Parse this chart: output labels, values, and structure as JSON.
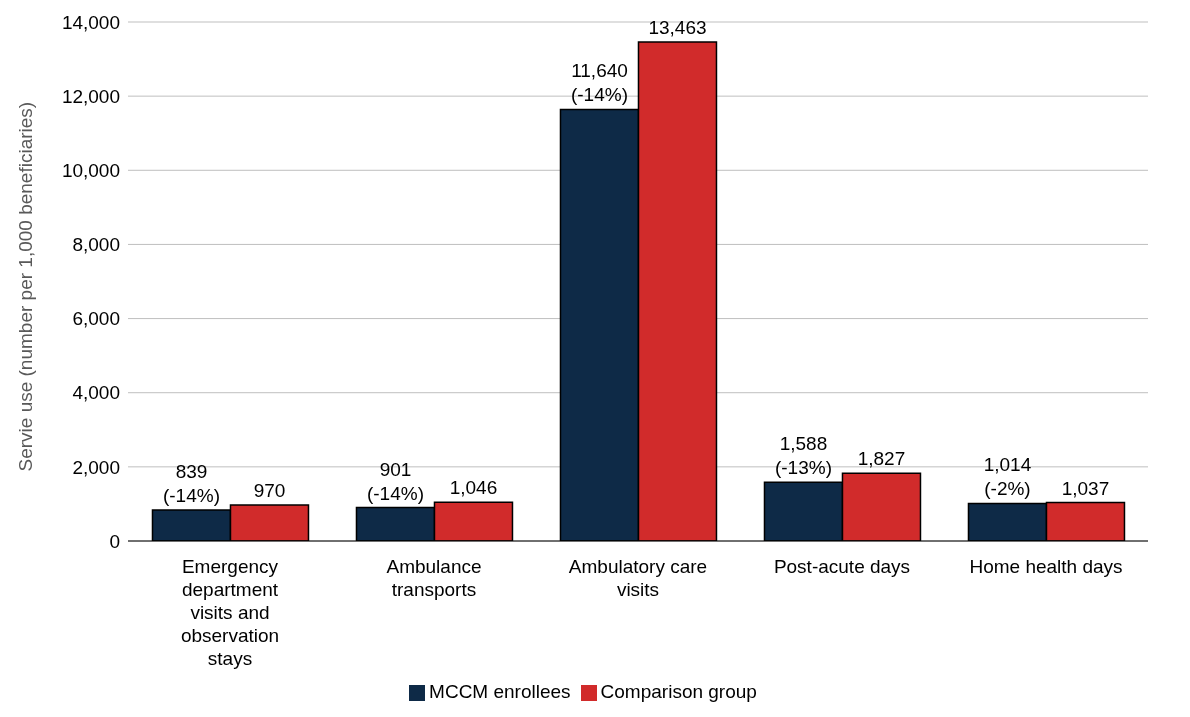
{
  "chart_data": {
    "type": "bar",
    "ylabel": "Servie use (number per 1,000 beneficiaries)",
    "categories": [
      "Emergency department visits and observation stays",
      "Ambulance transports",
      "Ambulatory care visits",
      "Post-acute days",
      "Home health days"
    ],
    "series": [
      {
        "name": "MCCM enrollees",
        "color": "#0e2a47",
        "values": [
          839,
          901,
          11640,
          1588,
          1014
        ],
        "value_labels": [
          "839\n(-14%)",
          "901\n(-14%)",
          "11,640\n(-14%)",
          "1,588\n(-13%)",
          "1,014\n(-2%)"
        ]
      },
      {
        "name": "Comparison group",
        "color": "#d12b2b",
        "values": [
          970,
          1046,
          13463,
          1827,
          1037
        ],
        "value_labels": [
          "970",
          "1,046",
          "13,463",
          "1,827",
          "1,037"
        ]
      }
    ],
    "ylim": [
      0,
      14000
    ],
    "yticks": [
      0,
      {
        "value": 2000,
        "label": "2,000"
      },
      {
        "value": 4000,
        "label": "4,000"
      },
      {
        "value": 6000,
        "label": "6,000"
      },
      {
        "value": 8000,
        "label": "8,000"
      },
      {
        "value": 10000,
        "label": "10,000"
      },
      {
        "value": 12000,
        "label": "12,000"
      },
      {
        "value": 14000,
        "label": "14,000"
      }
    ],
    "grid": "y",
    "legend": "bottom"
  }
}
